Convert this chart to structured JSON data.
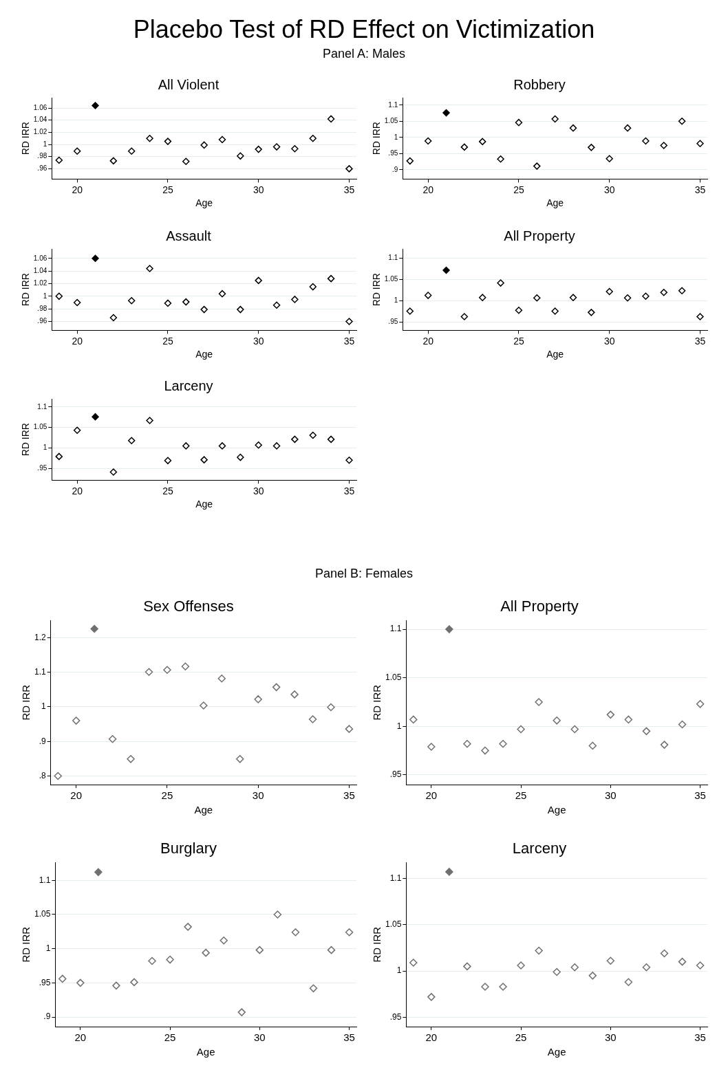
{
  "chart_data": [
    {
      "type": "other",
      "title": "Placebo Test of RD Effect on Victimization",
      "subtitle": "Panel A: Males"
    },
    {
      "type": "scatter",
      "title": "All Violent",
      "xlabel": "Age",
      "ylabel": "RD IRR",
      "marker": "diamond",
      "grid": "y",
      "x": [
        19,
        20,
        21,
        22,
        23,
        24,
        25,
        26,
        27,
        28,
        29,
        30,
        31,
        32,
        33,
        34,
        35
      ],
      "xlim": [
        18.6,
        35.4
      ],
      "xticks": [
        20,
        25,
        30,
        35
      ],
      "ylim": [
        0.943,
        1.077
      ],
      "yticks": [
        {
          "value": 0.96,
          "label": ".96"
        },
        {
          "value": 0.98,
          "label": ".98"
        },
        1,
        1.02,
        1.04,
        1.06
      ],
      "series": [
        {
          "color": "#000000",
          "values": [
            0.974,
            0.989,
            null,
            0.973,
            0.989,
            1.01,
            1.005,
            0.972,
            0.999,
            1.008,
            0.981,
            0.992,
            0.996,
            0.993,
            1.01,
            1.042,
            0.96
          ]
        },
        {
          "color": "#000000",
          "values": [
            null,
            null,
            1.064,
            null,
            null,
            null,
            null,
            null,
            null,
            null,
            null,
            null,
            null,
            null,
            null,
            null,
            null
          ]
        }
      ]
    },
    {
      "type": "scatter",
      "title": "Robbery",
      "xlabel": "Age",
      "ylabel": "RD IRR",
      "marker": "diamond",
      "grid": "y",
      "x": [
        19,
        20,
        21,
        22,
        23,
        24,
        25,
        26,
        27,
        28,
        29,
        30,
        31,
        32,
        33,
        34,
        35
      ],
      "xlim": [
        18.6,
        35.4
      ],
      "xticks": [
        20,
        25,
        30,
        35
      ],
      "ylim": [
        0.871,
        1.123
      ],
      "yticks": [
        {
          "value": 0.9,
          "label": ".9"
        },
        {
          "value": 0.95,
          "label": ".95"
        },
        1,
        1.05,
        1.1
      ],
      "series": [
        {
          "color": "#000000",
          "values": [
            0.927,
            0.989,
            null,
            0.97,
            0.987,
            0.933,
            1.046,
            0.911,
            1.057,
            1.029,
            0.969,
            0.934,
            1.029,
            0.989,
            0.975,
            1.05,
            0.981
          ]
        },
        {
          "color": "#000000",
          "values": [
            null,
            null,
            1.076,
            null,
            null,
            null,
            null,
            null,
            null,
            null,
            null,
            null,
            null,
            null,
            null,
            null,
            null
          ]
        }
      ]
    },
    {
      "type": "scatter",
      "title": "Assault",
      "xlabel": "Age",
      "ylabel": "RD IRR",
      "marker": "diamond",
      "grid": "y",
      "x": [
        19,
        20,
        21,
        22,
        23,
        24,
        25,
        26,
        27,
        28,
        29,
        30,
        31,
        32,
        33,
        34,
        35
      ],
      "xlim": [
        18.6,
        35.4
      ],
      "xticks": [
        20,
        25,
        30,
        35
      ],
      "ylim": [
        0.946,
        1.075
      ],
      "yticks": [
        {
          "value": 0.96,
          "label": ".96"
        },
        {
          "value": 0.98,
          "label": ".98"
        },
        1,
        1.02,
        1.04,
        1.06
      ],
      "series": [
        {
          "color": "#000000",
          "values": [
            1.0,
            0.99,
            null,
            0.966,
            0.993,
            1.044,
            0.989,
            0.991,
            0.979,
            1.004,
            0.979,
            1.025,
            0.986,
            0.995,
            1.015,
            1.028,
            0.96
          ]
        },
        {
          "color": "#000000",
          "values": [
            null,
            null,
            1.06,
            null,
            null,
            null,
            null,
            null,
            null,
            null,
            null,
            null,
            null,
            null,
            null,
            null,
            null
          ]
        }
      ]
    },
    {
      "type": "scatter",
      "title": "All Property",
      "xlabel": "Age",
      "ylabel": "RD IRR",
      "marker": "diamond",
      "grid": "y",
      "x": [
        19,
        20,
        21,
        22,
        23,
        24,
        25,
        26,
        27,
        28,
        29,
        30,
        31,
        32,
        33,
        34,
        35
      ],
      "xlim": [
        18.6,
        35.4
      ],
      "xticks": [
        20,
        25,
        30,
        35
      ],
      "ylim": [
        0.93,
        1.121
      ],
      "yticks": [
        {
          "value": 0.95,
          "label": ".95"
        },
        1,
        1.05,
        1.1
      ],
      "series": [
        {
          "color": "#000000",
          "values": [
            0.975,
            1.012,
            null,
            0.962,
            1.007,
            1.041,
            0.977,
            1.006,
            0.975,
            1.007,
            0.972,
            1.021,
            1.006,
            1.01,
            1.019,
            1.023,
            0.962
          ]
        },
        {
          "color": "#000000",
          "values": [
            null,
            null,
            1.071,
            null,
            null,
            null,
            null,
            null,
            null,
            null,
            null,
            null,
            null,
            null,
            null,
            null,
            null
          ]
        }
      ]
    },
    {
      "type": "scatter",
      "title": "Larceny",
      "xlabel": "Age",
      "ylabel": "RD IRR",
      "marker": "diamond",
      "grid": "y",
      "x": [
        19,
        20,
        21,
        22,
        23,
        24,
        25,
        26,
        27,
        28,
        29,
        30,
        31,
        32,
        33,
        34,
        35
      ],
      "xlim": [
        18.6,
        35.4
      ],
      "xticks": [
        20,
        25,
        30,
        35
      ],
      "ylim": [
        0.921,
        1.12
      ],
      "yticks": [
        {
          "value": 0.95,
          "label": ".95"
        },
        1,
        1.05,
        1.1
      ],
      "series": [
        {
          "color": "#000000",
          "values": [
            0.979,
            1.043,
            null,
            0.941,
            1.018,
            1.067,
            0.969,
            1.005,
            0.971,
            1.005,
            0.977,
            1.007,
            1.005,
            1.021,
            1.031,
            1.021,
            0.97
          ]
        },
        {
          "color": "#000000",
          "values": [
            null,
            null,
            1.076,
            null,
            null,
            null,
            null,
            null,
            null,
            null,
            null,
            null,
            null,
            null,
            null,
            null,
            null
          ]
        }
      ]
    },
    {
      "type": "other",
      "title": "Panel B: Females"
    },
    {
      "type": "scatter",
      "title": "Sex Offenses",
      "xlabel": "Age",
      "ylabel": "RD IRR",
      "marker": "diamond",
      "grid": "y",
      "x": [
        19,
        20,
        21,
        22,
        23,
        24,
        25,
        26,
        27,
        28,
        29,
        30,
        31,
        32,
        33,
        34,
        35
      ],
      "xlim": [
        18.6,
        35.4
      ],
      "xticks": [
        20,
        25,
        30,
        35
      ],
      "ylim": [
        0.775,
        1.25
      ],
      "yticks": [
        {
          "value": 0.8,
          "label": ".8"
        },
        {
          "value": 0.9,
          "label": ".9"
        },
        1,
        1.1,
        1.2
      ],
      "series": [
        {
          "color": "#707070",
          "values": [
            0.8,
            0.96,
            null,
            0.907,
            0.849,
            1.101,
            1.107,
            1.117,
            1.004,
            1.082,
            0.849,
            1.022,
            1.057,
            1.036,
            0.964,
            0.999,
            0.936
          ]
        },
        {
          "color": "#707070",
          "values": [
            null,
            null,
            1.226,
            null,
            null,
            null,
            null,
            null,
            null,
            null,
            null,
            null,
            null,
            null,
            null,
            null,
            null
          ]
        }
      ]
    },
    {
      "type": "scatter",
      "title": "All Property",
      "xlabel": "Age",
      "ylabel": "RD IRR",
      "marker": "diamond",
      "grid": "y",
      "x": [
        19,
        20,
        21,
        22,
        23,
        24,
        25,
        26,
        27,
        28,
        29,
        30,
        31,
        32,
        33,
        34,
        35
      ],
      "xlim": [
        18.6,
        35.4
      ],
      "xticks": [
        20,
        25,
        30,
        35
      ],
      "ylim": [
        0.94,
        1.109
      ],
      "yticks": [
        {
          "value": 0.95,
          "label": ".95"
        },
        1,
        1.05,
        1.1
      ],
      "series": [
        {
          "color": "#707070",
          "values": [
            1.007,
            0.979,
            null,
            0.982,
            0.975,
            0.982,
            0.997,
            1.025,
            1.006,
            0.997,
            0.98,
            1.012,
            1.007,
            0.995,
            0.981,
            1.002,
            1.023
          ]
        },
        {
          "color": "#707070",
          "values": [
            null,
            null,
            1.1,
            null,
            null,
            null,
            null,
            null,
            null,
            null,
            null,
            null,
            null,
            null,
            null,
            null,
            null
          ]
        }
      ]
    },
    {
      "type": "scatter",
      "title": "Burglary",
      "xlabel": "Age",
      "ylabel": "RD IRR",
      "marker": "diamond",
      "grid": "y",
      "x": [
        19,
        20,
        21,
        22,
        23,
        24,
        25,
        26,
        27,
        28,
        29,
        30,
        31,
        32,
        33,
        34,
        35
      ],
      "xlim": [
        18.6,
        35.4
      ],
      "xticks": [
        20,
        25,
        30,
        35
      ],
      "ylim": [
        0.886,
        1.126
      ],
      "yticks": [
        {
          "value": 0.9,
          "label": ".9"
        },
        {
          "value": 0.95,
          "label": ".95"
        },
        1,
        1.05,
        1.1
      ],
      "series": [
        {
          "color": "#707070",
          "values": [
            0.956,
            0.95,
            null,
            0.946,
            0.951,
            0.982,
            0.984,
            1.032,
            0.994,
            1.012,
            0.907,
            0.998,
            1.05,
            1.024,
            0.942,
            0.998,
            1.024
          ]
        },
        {
          "color": "#707070",
          "values": [
            null,
            null,
            1.112,
            null,
            null,
            null,
            null,
            null,
            null,
            null,
            null,
            null,
            null,
            null,
            null,
            null,
            null
          ]
        }
      ]
    },
    {
      "type": "scatter",
      "title": "Larceny",
      "xlabel": "Age",
      "ylabel": "RD IRR",
      "marker": "diamond",
      "grid": "y",
      "x": [
        19,
        20,
        21,
        22,
        23,
        24,
        25,
        26,
        27,
        28,
        29,
        30,
        31,
        32,
        33,
        34,
        35
      ],
      "xlim": [
        18.6,
        35.4
      ],
      "xticks": [
        20,
        25,
        30,
        35
      ],
      "ylim": [
        0.94,
        1.117
      ],
      "yticks": [
        {
          "value": 0.95,
          "label": ".95"
        },
        1,
        1.05,
        1.1
      ],
      "series": [
        {
          "color": "#707070",
          "values": [
            1.009,
            0.972,
            null,
            1.005,
            0.983,
            0.983,
            1.006,
            1.022,
            0.999,
            1.004,
            0.995,
            1.011,
            0.988,
            1.004,
            1.019,
            1.01,
            1.006
          ]
        },
        {
          "color": "#707070",
          "values": [
            null,
            null,
            1.107,
            null,
            null,
            null,
            null,
            null,
            null,
            null,
            null,
            null,
            null,
            null,
            null,
            null,
            null
          ]
        }
      ]
    }
  ]
}
